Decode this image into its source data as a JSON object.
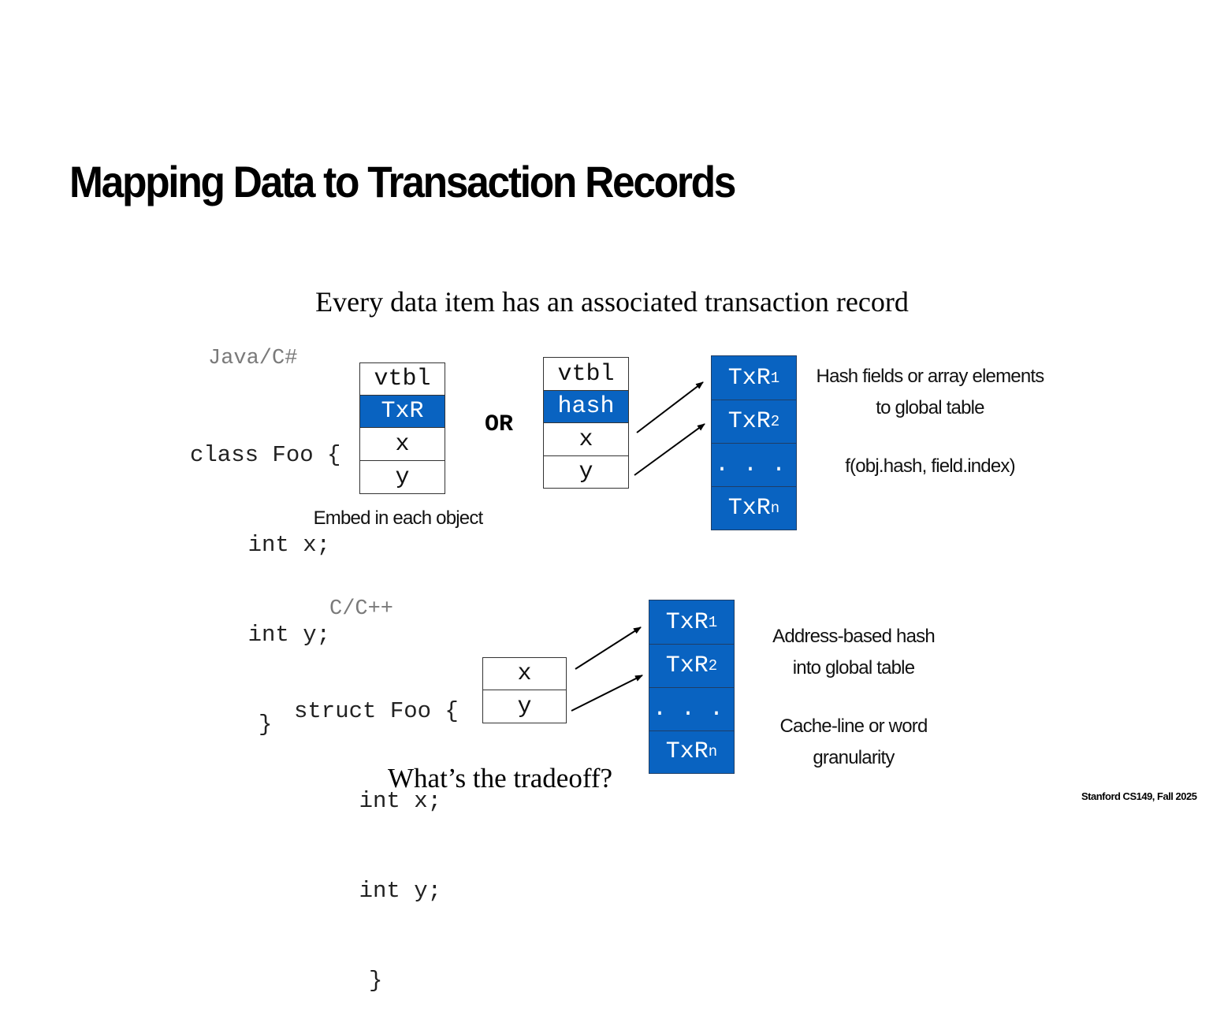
{
  "title": "Mapping Data to Transaction Records",
  "subtitle": "Every data item has an associated transaction record",
  "java": {
    "lang_label": "Java/C#",
    "code": [
      "class Foo {",
      "    int x;",
      "    int y;",
      "     }"
    ],
    "embed_cells": [
      "vtbl",
      "TxR",
      "x",
      "y"
    ],
    "embed_caption": "Embed in each object",
    "or_label": "OR",
    "hash_cells": [
      "vtbl",
      "hash",
      "x",
      "y"
    ],
    "table": {
      "r1": "TxR",
      "r1_sub": "1",
      "r2": "TxR",
      "r2_sub": "2",
      "dots": ". . .",
      "rn": "TxR",
      "rn_sub": "n"
    },
    "note_line1": "Hash fields or array elements",
    "note_line2": "to global table",
    "formula": "f(obj.hash, field.index)"
  },
  "cpp": {
    "lang_label": "C/C++",
    "code": [
      "struct Foo {",
      "    int x;",
      "    int y;",
      "     }"
    ],
    "cells": [
      "x",
      "y"
    ],
    "table": {
      "r1": "TxR",
      "r1_sub": "1",
      "r2": "TxR",
      "r2_sub": "2",
      "dots": ". . .",
      "rn": "TxR",
      "rn_sub": "n"
    },
    "note_line1": "Address-based hash",
    "note_line2": "into global table",
    "note2_line1": "Cache-line or word",
    "note2_line2": "granularity",
    "question": "What’s the tradeoff?"
  },
  "footer": "Stanford CS149, Fall 2025",
  "colors": {
    "record_blue": "#0963c1",
    "gray_text": "#7a7a7a"
  }
}
